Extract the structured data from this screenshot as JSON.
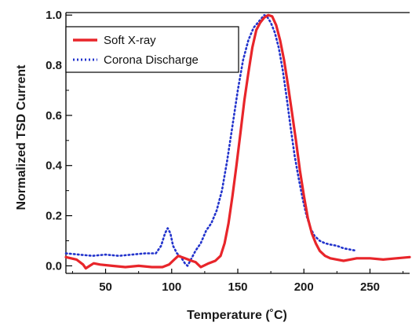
{
  "chart_data": {
    "type": "line",
    "xlabel": "Temperature (˚C)",
    "ylabel": "Normalized TSD Current",
    "xlim": [
      20,
      280
    ],
    "ylim": [
      -0.03,
      1.01
    ],
    "xticks": [
      50,
      100,
      150,
      200,
      250
    ],
    "yticks": [
      0.0,
      0.2,
      0.4,
      0.6,
      0.8,
      1.0
    ],
    "x_tick_labels": [
      "50",
      "100",
      "150",
      "200",
      "250"
    ],
    "y_tick_labels": [
      "0.0",
      "0.2",
      "0.4",
      "0.6",
      "0.8",
      "1.0"
    ],
    "grid": false,
    "legend_position": "top-left",
    "series": [
      {
        "name": "Soft X-ray",
        "color": "#e8252a",
        "style": "solid",
        "points": [
          [
            20,
            0.035
          ],
          [
            28,
            0.025
          ],
          [
            33,
            0.005
          ],
          [
            35,
            -0.01
          ],
          [
            38,
            0.0
          ],
          [
            41,
            0.01
          ],
          [
            46,
            0.005
          ],
          [
            55,
            0.0
          ],
          [
            65,
            -0.005
          ],
          [
            75,
            0.0
          ],
          [
            85,
            -0.005
          ],
          [
            93,
            -0.005
          ],
          [
            98,
            0.005
          ],
          [
            102,
            0.025
          ],
          [
            105,
            0.04
          ],
          [
            110,
            0.03
          ],
          [
            115,
            0.02
          ],
          [
            118,
            0.015
          ],
          [
            120,
            0.005
          ],
          [
            122,
            -0.005
          ],
          [
            124,
            0.0
          ],
          [
            128,
            0.01
          ],
          [
            133,
            0.02
          ],
          [
            137,
            0.04
          ],
          [
            140,
            0.09
          ],
          [
            143,
            0.17
          ],
          [
            146,
            0.28
          ],
          [
            149,
            0.4
          ],
          [
            152,
            0.53
          ],
          [
            155,
            0.66
          ],
          [
            158,
            0.77
          ],
          [
            161,
            0.87
          ],
          [
            164,
            0.94
          ],
          [
            167,
            0.97
          ],
          [
            170,
            0.99
          ],
          [
            173,
            1.0
          ],
          [
            176,
            0.995
          ],
          [
            179,
            0.96
          ],
          [
            182,
            0.9
          ],
          [
            185,
            0.82
          ],
          [
            188,
            0.72
          ],
          [
            191,
            0.61
          ],
          [
            194,
            0.5
          ],
          [
            197,
            0.38
          ],
          [
            200,
            0.28
          ],
          [
            203,
            0.19
          ],
          [
            206,
            0.13
          ],
          [
            209,
            0.09
          ],
          [
            212,
            0.06
          ],
          [
            216,
            0.04
          ],
          [
            220,
            0.03
          ],
          [
            225,
            0.025
          ],
          [
            230,
            0.02
          ],
          [
            235,
            0.025
          ],
          [
            240,
            0.03
          ],
          [
            250,
            0.03
          ],
          [
            260,
            0.025
          ],
          [
            270,
            0.03
          ],
          [
            280,
            0.035
          ]
        ]
      },
      {
        "name": "Corona Discharge",
        "color": "#2233cc",
        "style": "dotted",
        "points": [
          [
            20,
            0.05
          ],
          [
            30,
            0.045
          ],
          [
            40,
            0.04
          ],
          [
            50,
            0.045
          ],
          [
            60,
            0.04
          ],
          [
            70,
            0.045
          ],
          [
            80,
            0.05
          ],
          [
            88,
            0.05
          ],
          [
            92,
            0.08
          ],
          [
            95,
            0.13
          ],
          [
            97,
            0.15
          ],
          [
            99,
            0.13
          ],
          [
            101,
            0.08
          ],
          [
            104,
            0.05
          ],
          [
            107,
            0.035
          ],
          [
            110,
            0.01
          ],
          [
            112,
            0.0
          ],
          [
            114,
            0.02
          ],
          [
            118,
            0.06
          ],
          [
            122,
            0.09
          ],
          [
            126,
            0.14
          ],
          [
            130,
            0.17
          ],
          [
            134,
            0.22
          ],
          [
            138,
            0.3
          ],
          [
            142,
            0.42
          ],
          [
            146,
            0.56
          ],
          [
            150,
            0.7
          ],
          [
            154,
            0.82
          ],
          [
            158,
            0.9
          ],
          [
            162,
            0.95
          ],
          [
            166,
            0.975
          ],
          [
            170,
            1.0
          ],
          [
            172,
            0.995
          ],
          [
            175,
            0.97
          ],
          [
            178,
            0.93
          ],
          [
            181,
            0.87
          ],
          [
            184,
            0.78
          ],
          [
            187,
            0.67
          ],
          [
            190,
            0.55
          ],
          [
            193,
            0.44
          ],
          [
            196,
            0.35
          ],
          [
            199,
            0.27
          ],
          [
            202,
            0.2
          ],
          [
            205,
            0.15
          ],
          [
            208,
            0.12
          ],
          [
            212,
            0.1
          ],
          [
            216,
            0.09
          ],
          [
            220,
            0.085
          ],
          [
            225,
            0.08
          ],
          [
            230,
            0.07
          ],
          [
            235,
            0.065
          ],
          [
            240,
            0.06
          ]
        ]
      }
    ]
  }
}
